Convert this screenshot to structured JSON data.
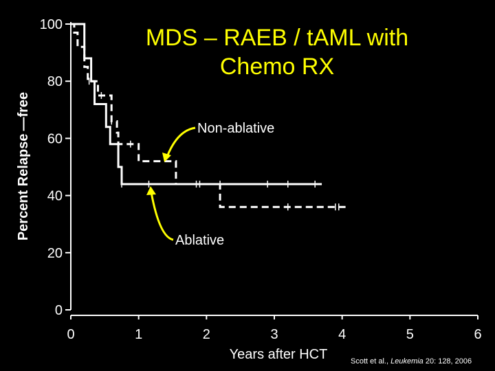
{
  "chart_data": {
    "type": "line",
    "title": "MDS – RAEB / tAML with Chemo RX",
    "title_lines": [
      "MDS – RAEB / tAML with",
      "Chemo RX"
    ],
    "xlabel": "Years after HCT",
    "ylabel": "Percent Relapse —free",
    "xlim": [
      0,
      6
    ],
    "ylim": [
      0,
      100
    ],
    "x_ticks": [
      0,
      1,
      2,
      3,
      4,
      5,
      6
    ],
    "y_ticks": [
      0,
      20,
      40,
      60,
      80,
      100
    ],
    "grid": false,
    "series": [
      {
        "name": "Ablative",
        "style": "solid",
        "steps": [
          [
            0.0,
            100
          ],
          [
            0.2,
            88
          ],
          [
            0.3,
            80
          ],
          [
            0.35,
            72
          ],
          [
            0.5,
            72
          ],
          [
            0.52,
            64
          ],
          [
            0.58,
            58
          ],
          [
            0.7,
            50
          ],
          [
            0.75,
            44
          ],
          [
            3.7,
            44
          ]
        ],
        "censor_x": [
          0.75,
          1.15,
          1.85,
          2.2,
          2.9,
          3.2,
          3.6
        ]
      },
      {
        "name": "Non-ablative",
        "style": "dashed",
        "steps": [
          [
            0.0,
            100
          ],
          [
            0.05,
            97
          ],
          [
            0.1,
            92
          ],
          [
            0.2,
            85
          ],
          [
            0.25,
            80
          ],
          [
            0.4,
            75
          ],
          [
            0.6,
            66
          ],
          [
            0.68,
            62
          ],
          [
            0.7,
            58
          ],
          [
            1.0,
            52
          ],
          [
            1.55,
            44
          ],
          [
            2.2,
            36
          ],
          [
            4.05,
            36
          ]
        ],
        "censor_x": [
          0.27,
          0.45,
          0.6,
          0.88,
          1.9,
          3.2,
          3.2,
          3.9,
          3.95
        ]
      }
    ],
    "annotations": [
      {
        "text": "Non-ablative",
        "series": "Non-ablative"
      },
      {
        "text": "Ablative",
        "series": "Ablative"
      }
    ],
    "colors": {
      "background": "#000000",
      "title": "#ffff00",
      "lines": "#ffffff",
      "arrows": "#ffff00"
    }
  },
  "citation": {
    "authors": "Scott et al., ",
    "journal": "Leukemia",
    "details": " 20: 128, 2006"
  }
}
